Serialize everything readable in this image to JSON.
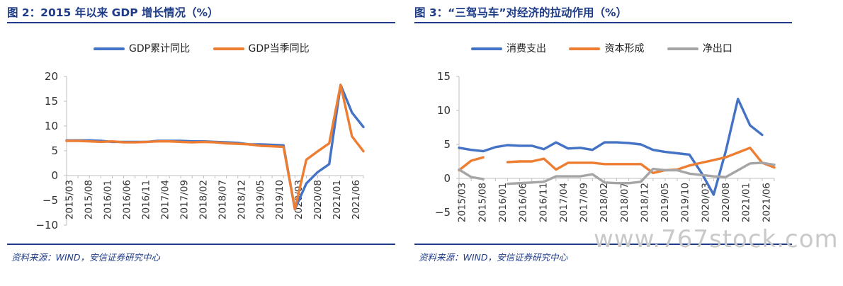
{
  "left": {
    "title": "图 2：2015 年以来 GDP 增长情况（%）",
    "source": "资料来源：WIND，安信证券研究中心",
    "chart_data": {
      "type": "line",
      "x": [
        "2015/03",
        "2015/06",
        "2015/09",
        "2015/12",
        "2016/03",
        "2016/06",
        "2016/09",
        "2016/12",
        "2017/03",
        "2017/06",
        "2017/09",
        "2017/12",
        "2018/03",
        "2018/06",
        "2018/09",
        "2018/12",
        "2019/03",
        "2019/06",
        "2019/09",
        "2019/12",
        "2020/03",
        "2020/06",
        "2020/09",
        "2020/12",
        "2021/03",
        "2021/06",
        "2021/09"
      ],
      "tick_labels": [
        "2015/03",
        "2015/08",
        "2016/01",
        "2016/06",
        "2016/11",
        "2017/04",
        "2017/09",
        "2018/02",
        "2018/07",
        "2018/12",
        "2019/05",
        "2019/10",
        "2020/03",
        "2020/08",
        "2021/01",
        "2021/06"
      ],
      "series": [
        {
          "name": "GDP累计同比",
          "color": "#4472c4",
          "values": [
            7.1,
            7.1,
            7.1,
            7.0,
            6.8,
            6.8,
            6.8,
            6.8,
            7.0,
            7.0,
            7.0,
            6.9,
            6.9,
            6.8,
            6.7,
            6.6,
            6.3,
            6.3,
            6.2,
            6.1,
            -6.8,
            -1.6,
            0.7,
            2.3,
            18.3,
            12.7,
            9.8
          ]
        },
        {
          "name": "GDP当季同比",
          "color": "#ed7d31",
          "values": [
            7.0,
            7.0,
            6.9,
            6.8,
            6.9,
            6.7,
            6.7,
            6.8,
            6.9,
            6.9,
            6.8,
            6.7,
            6.8,
            6.7,
            6.5,
            6.4,
            6.3,
            6.0,
            5.9,
            5.8,
            -6.8,
            3.2,
            4.9,
            6.5,
            18.3,
            7.9,
            4.9
          ]
        }
      ],
      "ylim": [
        -10,
        20
      ],
      "yticks": [
        -10,
        -5,
        0,
        5,
        10,
        15,
        20
      ],
      "ytick_labels": [
        "−10",
        "−5",
        "0",
        "5",
        "10",
        "15",
        "20"
      ],
      "legend": "top-center",
      "grid": false
    }
  },
  "right": {
    "title": "图 3：“三驾马车”对经济的拉动作用（%）",
    "source": "资料来源：WIND，安信证券研究中心",
    "chart_data": {
      "type": "line",
      "x": [
        "2015/03",
        "2015/06",
        "2015/09",
        "2015/12",
        "2016/03",
        "2016/06",
        "2016/09",
        "2016/12",
        "2017/03",
        "2017/06",
        "2017/09",
        "2017/12",
        "2018/03",
        "2018/06",
        "2018/09",
        "2018/12",
        "2019/03",
        "2019/06",
        "2019/09",
        "2019/12",
        "2020/03",
        "2020/06",
        "2020/09",
        "2020/12",
        "2021/03",
        "2021/06",
        "2021/09"
      ],
      "tick_labels": [
        "2015/03",
        "2015/08",
        "2016/01",
        "2016/06",
        "2016/11",
        "2017/04",
        "2017/09",
        "2018/02",
        "2018/07",
        "2018/12",
        "2019/05",
        "2019/10",
        "2020/03",
        "2020/08",
        "2021/01",
        "2021/06"
      ],
      "series": [
        {
          "name": "消费支出",
          "color": "#4472c4",
          "values": [
            4.5,
            4.2,
            4.0,
            4.6,
            4.9,
            4.8,
            4.8,
            4.3,
            5.3,
            4.4,
            4.5,
            4.2,
            5.3,
            5.3,
            5.2,
            5.0,
            4.2,
            3.9,
            3.7,
            3.5,
            0.8,
            -2.4,
            4.0,
            11.7,
            7.8,
            6.4,
            null
          ]
        },
        {
          "name": "资本形成",
          "color": "#ed7d31",
          "values": [
            1.2,
            2.6,
            3.1,
            null,
            2.4,
            2.5,
            2.5,
            2.9,
            1.3,
            2.3,
            2.3,
            2.3,
            2.1,
            2.1,
            2.1,
            2.1,
            0.8,
            1.2,
            1.3,
            1.9,
            2.3,
            2.7,
            3.1,
            3.8,
            4.5,
            2.3,
            1.6
          ]
        },
        {
          "name": "净出口",
          "color": "#a5a5a5",
          "values": [
            1.3,
            0.2,
            -0.1,
            null,
            -0.8,
            -0.7,
            -0.6,
            -0.5,
            0.3,
            0.3,
            0.3,
            0.6,
            -0.6,
            -0.7,
            -0.7,
            -0.5,
            1.4,
            1.2,
            1.2,
            0.7,
            0.5,
            0.3,
            0.2,
            1.2,
            2.2,
            2.3,
            2.0
          ]
        }
      ],
      "ylim": [
        -5,
        15
      ],
      "yticks": [
        -5,
        0,
        5,
        10,
        15
      ],
      "ytick_labels": [
        "−5",
        "0",
        "5",
        "10",
        "15"
      ],
      "legend": "top-center",
      "grid": false
    }
  },
  "watermark": "www.767stock.com"
}
